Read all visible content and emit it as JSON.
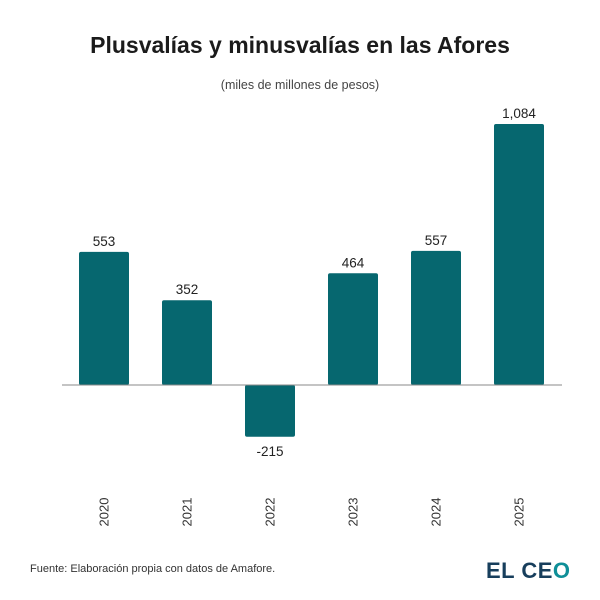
{
  "chart_data": {
    "type": "bar",
    "title": "Plusvalías y minusvalías en las Afores",
    "subtitle": "(miles de millones de pesos)",
    "categories": [
      "2020",
      "2021",
      "2022",
      "2023",
      "2024",
      "2025"
    ],
    "values": [
      553,
      352,
      -215,
      464,
      557,
      1084
    ],
    "value_labels": [
      "553",
      "352",
      "-215",
      "464",
      "557",
      "1,084"
    ],
    "ylim": [
      -215,
      1084
    ],
    "grid": false,
    "bar_color": "#06676f"
  },
  "footer": {
    "source": "Fuente: Elaboración propia con datos de Amafore.",
    "logo_text": "EL CEO"
  }
}
